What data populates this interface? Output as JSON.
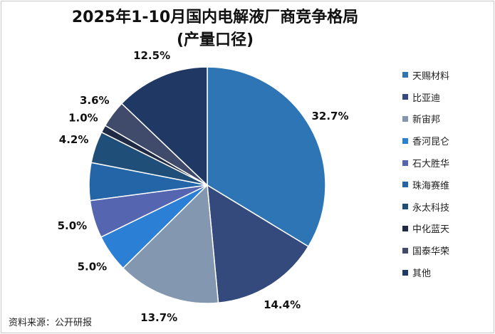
{
  "chart_data": {
    "type": "pie",
    "title": "2025年1-10月国内电解液厂商竞争格局",
    "subtitle": "(产量口径)",
    "categories": [
      "天赐材料",
      "比亚迪",
      "新宙邦",
      "香河昆仑",
      "石大胜华",
      "珠海赛维",
      "永太科技",
      "中化蓝天",
      "国泰华荣",
      "其他"
    ],
    "values": [
      32.7,
      14.4,
      13.7,
      5.0,
      5.0,
      5.0,
      4.2,
      1.0,
      3.6,
      12.5
    ],
    "labels": [
      "32.7%",
      "14.4%",
      "13.7%",
      "5.0%",
      "5.0%",
      "",
      "4.2%",
      "1.0%",
      "3.6%",
      "12.5%"
    ],
    "colors": [
      "#2e75b6",
      "#354a7c",
      "#8497b0",
      "#2b7fd4",
      "#5565b0",
      "#2465a8",
      "#1f4e79",
      "#1f2a44",
      "#404a6a",
      "#203864"
    ],
    "legend_position": "right",
    "unit": "%"
  },
  "source": "资料来源：公开研报"
}
